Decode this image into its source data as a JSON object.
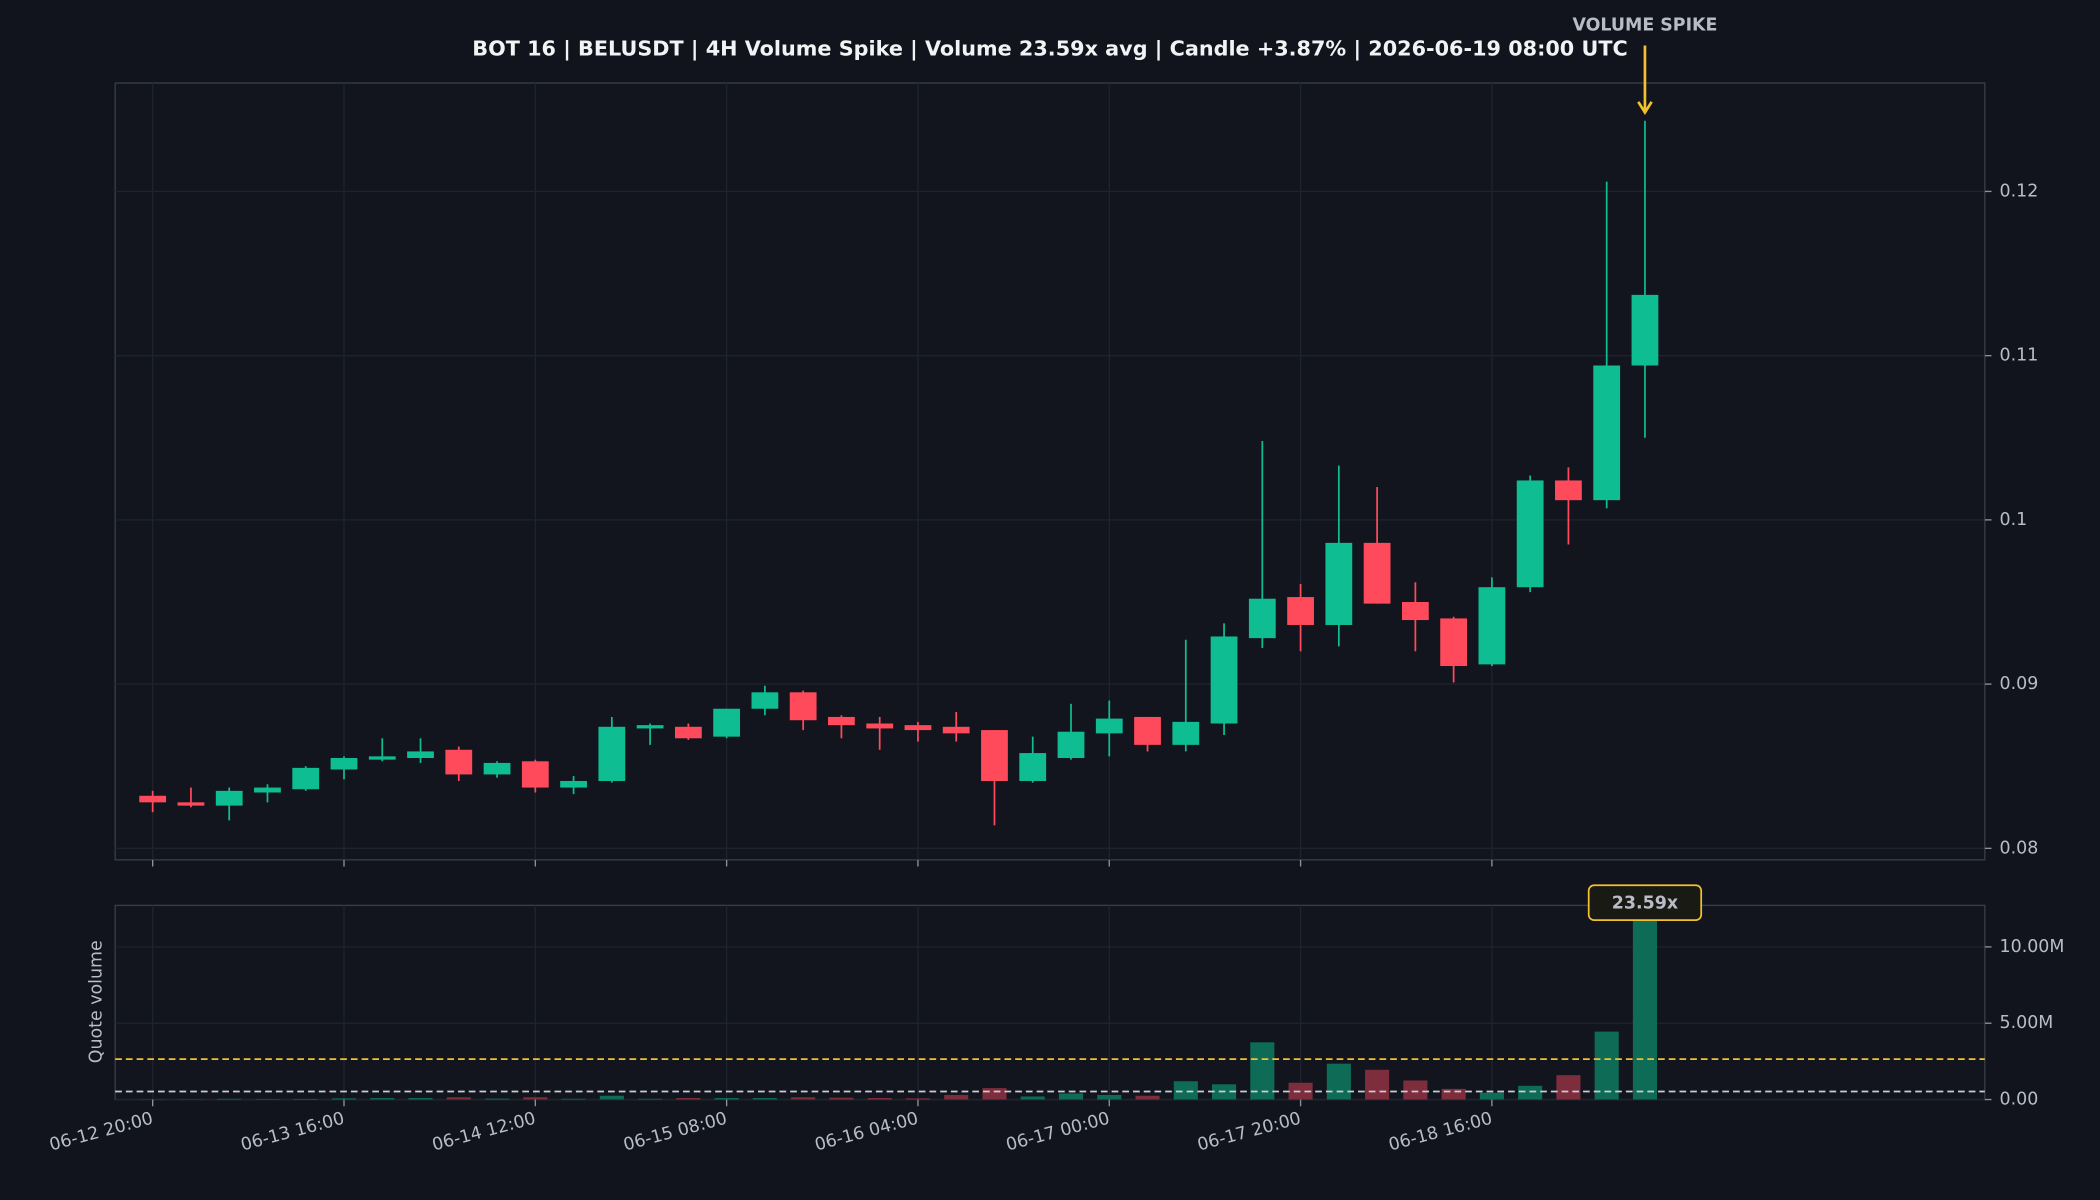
{
  "chart_data": {
    "type": "candlestick",
    "title": "BOT 16 | BELUSDT | 4H Volume Spike | Volume 23.59x avg | Candle +3.87% | 2026-06-19 08:00 UTC",
    "annotation": "VOLUME SPIKE",
    "categories": [
      "06-12 20:00",
      null,
      null,
      null,
      null,
      "06-13 16:00",
      null,
      null,
      null,
      null,
      "06-14 12:00",
      null,
      null,
      null,
      null,
      "06-15 08:00",
      null,
      null,
      null,
      null,
      "06-16 04:00",
      null,
      null,
      null,
      null,
      "06-17 00:00",
      null,
      null,
      null,
      null,
      "06-17 20:00",
      null,
      null,
      null,
      null,
      "06-18 16:00",
      null,
      null,
      null,
      null
    ],
    "open": [
      0.0832,
      0.0828,
      0.0826,
      0.0834,
      0.0836,
      0.0848,
      0.0854,
      0.0855,
      0.086,
      0.0845,
      0.0853,
      0.0837,
      0.0841,
      0.0873,
      0.0874,
      0.0868,
      0.0885,
      0.0895,
      0.088,
      0.0876,
      0.0875,
      0.0874,
      0.0872,
      0.0841,
      0.0855,
      0.087,
      0.088,
      0.0863,
      0.0876,
      0.0928,
      0.0953,
      0.0936,
      0.0986,
      0.095,
      0.094,
      0.0912,
      0.0959,
      0.1024,
      0.1012,
      0.1094
    ],
    "high": [
      0.0835,
      0.0837,
      0.0837,
      0.0839,
      0.085,
      0.0856,
      0.0867,
      0.0867,
      0.0862,
      0.0853,
      0.0854,
      0.0844,
      0.088,
      0.0876,
      0.0876,
      0.0885,
      0.0899,
      0.0896,
      0.0881,
      0.088,
      0.0877,
      0.0883,
      0.0872,
      0.0868,
      0.0888,
      0.089,
      0.088,
      0.0927,
      0.0937,
      0.1048,
      0.0961,
      0.1033,
      0.102,
      0.0962,
      0.0941,
      0.0965,
      0.1027,
      0.1032,
      0.1206,
      0.1243
    ],
    "low": [
      0.0822,
      0.0825,
      0.0817,
      0.0828,
      0.0835,
      0.0842,
      0.0853,
      0.0852,
      0.0841,
      0.0843,
      0.0834,
      0.0833,
      0.084,
      0.0863,
      0.0866,
      0.0867,
      0.0881,
      0.0872,
      0.0867,
      0.086,
      0.0865,
      0.0865,
      0.0814,
      0.084,
      0.0854,
      0.0856,
      0.0859,
      0.0859,
      0.0869,
      0.0922,
      0.092,
      0.0923,
      0.0949,
      0.092,
      0.0901,
      0.0911,
      0.0956,
      0.0985,
      0.1007,
      0.105
    ],
    "close": [
      0.0828,
      0.0826,
      0.0835,
      0.0837,
      0.0849,
      0.0855,
      0.0856,
      0.0859,
      0.0845,
      0.0852,
      0.0837,
      0.0841,
      0.0874,
      0.0875,
      0.0867,
      0.0885,
      0.0895,
      0.0878,
      0.0875,
      0.0873,
      0.0872,
      0.087,
      0.0841,
      0.0858,
      0.0871,
      0.0879,
      0.0863,
      0.0877,
      0.0929,
      0.0952,
      0.0936,
      0.0986,
      0.0949,
      0.0939,
      0.0911,
      0.0959,
      0.1024,
      0.1012,
      0.1094,
      0.1137
    ],
    "ylim": [
      0.0793,
      0.1266
    ],
    "yticks": [
      0.08,
      0.09,
      0.1,
      0.11,
      0.12
    ],
    "up_color": "#0fbd92",
    "down_color": "#ff4a5c",
    "grid": true,
    "volume": {
      "ylabel": "Quote volume",
      "badge": "23.59x",
      "values": [
        20000,
        20000,
        50000,
        30000,
        40000,
        80000,
        100000,
        100000,
        150000,
        60000,
        150000,
        50000,
        250000,
        50000,
        100000,
        100000,
        100000,
        150000,
        120000,
        100000,
        80000,
        300000,
        750000,
        200000,
        400000,
        300000,
        250000,
        1200000,
        1000000,
        3750000,
        1100000,
        2350000,
        1950000,
        1250000,
        700000,
        450000,
        900000,
        1600000,
        4450000,
        12500000
      ],
      "up_color": "#0e6b56",
      "down_color": "#7d2d3b",
      "ylim": [
        0,
        12720000
      ],
      "yticks": [
        {
          "value": 0,
          "label": "0.00"
        },
        {
          "value": 5000000,
          "label": "5.00M"
        },
        {
          "value": 10000000,
          "label": "10.00M"
        }
      ],
      "reference_lines": [
        {
          "value": 530000,
          "color": "#c8ccd4"
        },
        {
          "value": 2650000,
          "color": "#f2c12e"
        }
      ]
    }
  }
}
